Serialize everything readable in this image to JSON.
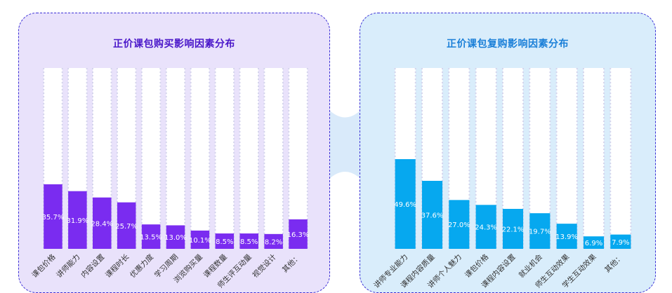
{
  "colors": {
    "left_bar": "#7a2cf0",
    "right_bar": "#06a8ef",
    "left_panel_bg": "#e9e2fb",
    "right_panel_bg": "#d9edfb",
    "panel_border": "#3b2fd6"
  },
  "chart_data": [
    {
      "type": "bar",
      "title": "正价课包购买影响因素分布",
      "categories": [
        "课包价格",
        "讲师能力",
        "内容设置",
        "课程时长",
        "优惠力度",
        "学习周期",
        "浏览购买量",
        "课程数量",
        "师生评互动量",
        "视觉设计",
        "其他："
      ],
      "values": [
        35.7,
        31.9,
        28.4,
        25.7,
        13.5,
        13.0,
        10.1,
        8.5,
        8.5,
        8.2,
        16.3
      ],
      "value_labels": [
        "35.7%",
        "31.9%",
        "28.4%",
        "25.7%",
        "13.5%",
        "13.0%",
        "10.1%",
        "8.5%",
        "8.5%",
        "8.2%",
        "16.3%"
      ],
      "ylim": [
        0,
        100
      ],
      "grid": false,
      "color": "#7a2cf0"
    },
    {
      "type": "bar",
      "title": "正价课包复购影响因素分布",
      "categories": [
        "讲师专业能力",
        "课程内容质量",
        "讲师个人魅力",
        "课包价格",
        "课程内容设置",
        "就业机会",
        "师生互动效果",
        "学生互动效果",
        "其他："
      ],
      "values": [
        49.6,
        37.6,
        27.0,
        24.3,
        22.1,
        19.7,
        13.9,
        6.9,
        7.9
      ],
      "value_labels": [
        "49.6%",
        "37.6%",
        "27.0%",
        "24.3%",
        "22.1%",
        "19.7%",
        "13.9%",
        "6.9%",
        "7.9%"
      ],
      "ylim": [
        0,
        100
      ],
      "grid": false,
      "color": "#06a8ef"
    }
  ]
}
